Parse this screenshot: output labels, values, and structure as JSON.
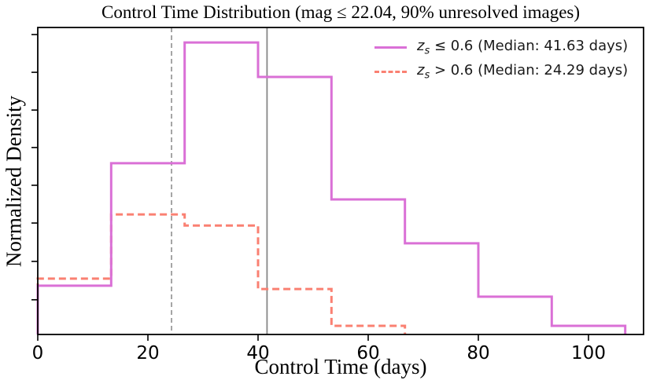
{
  "chart_data": {
    "type": "step-histogram",
    "title": "Control Time Distribution (mag ≤ 22.04, 90% unresolved images)",
    "xlabel": "Control Time (days)",
    "ylabel": "Normalized Density",
    "xlim": [
      0,
      110
    ],
    "ylim_normalized": [
      0,
      1
    ],
    "grid": false,
    "x_ticks": [
      0,
      20,
      40,
      60,
      80,
      100
    ],
    "x_tick_labels": [
      "0",
      "20",
      "40",
      "60",
      "80",
      "100"
    ],
    "y_ticks_normalized": [
      0.113,
      0.238,
      0.363,
      0.486,
      0.609,
      0.731,
      0.854,
      0.977
    ],
    "y_tick_labels_shown": false,
    "bin_width_days": 13.33,
    "series": [
      {
        "name": "zs-le-0.6",
        "legend": {
          "symbol": "z",
          "subscript": "s",
          "rest": " ≤ 0.6 (Median: 41.63 days)"
        },
        "color": "#DA70D6",
        "line_style": "solid",
        "median_days": 41.63,
        "bin_edges": [
          0,
          13.33,
          26.67,
          40,
          53.33,
          66.67,
          80,
          93.33,
          106.67
        ],
        "heights_normalized": [
          0.159,
          0.558,
          0.951,
          0.839,
          0.44,
          0.297,
          0.123,
          0.028
        ]
      },
      {
        "name": "zs-gt-0.6",
        "legend": {
          "symbol": "z",
          "subscript": "s",
          "rest": " > 0.6 (Median: 24.29 days)"
        },
        "color": "#FA8072",
        "line_style": "dashed",
        "median_days": 24.29,
        "bin_edges": [
          0,
          13.33,
          26.67,
          40,
          53.33,
          66.67
        ],
        "heights_normalized": [
          0.182,
          0.391,
          0.355,
          0.148,
          0.028
        ]
      }
    ],
    "reference_lines": [
      {
        "value_days": 24.29,
        "style": "dashed",
        "color": "#9B9B9B",
        "meaning": "median zs>0.6"
      },
      {
        "value_days": 41.63,
        "style": "solid",
        "color": "#868686",
        "meaning": "median zs<=0.6"
      }
    ],
    "legend_position": "upper right",
    "legend_frame": false
  }
}
